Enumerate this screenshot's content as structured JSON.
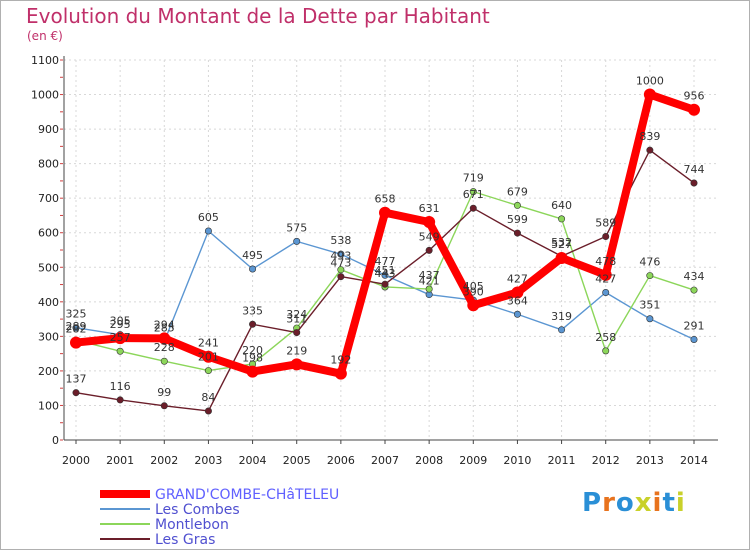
{
  "title": "Evolution du Montant de la Dette par Habitant",
  "subtitle": "(en €)",
  "logo": {
    "text": "Proxiti",
    "colors": [
      "#2a8fd6",
      "#e8731e",
      "#2a8fd6",
      "#c9d12a",
      "#e8731e",
      "#2a8fd6",
      "#c9d12a"
    ]
  },
  "chart_data": {
    "type": "line",
    "x": [
      "2000",
      "2001",
      "2002",
      "2003",
      "2004",
      "2005",
      "2006",
      "2007",
      "2008",
      "2009",
      "2010",
      "2011",
      "2012",
      "2013",
      "2014"
    ],
    "ylim": [
      0,
      1100
    ],
    "yticks": [
      0,
      100,
      200,
      300,
      400,
      500,
      600,
      700,
      800,
      900,
      1000,
      1100
    ],
    "grid": true,
    "legend": "bottom-left",
    "series": [
      {
        "name": "GRAND'COMBE-CHâTELEU",
        "color": "#ff0000",
        "values": [
          282,
          295,
          294,
          241,
          198,
          219,
          192,
          658,
          631,
          390,
          427,
          527,
          478,
          1000,
          956
        ],
        "labels": [
          "282",
          "295",
          "294",
          "241",
          "198",
          "219",
          "192",
          "658",
          "631",
          "390",
          "427",
          "527",
          "478",
          "1000",
          "956"
        ]
      },
      {
        "name": "Les Combes",
        "color": "#5b96d2",
        "values": [
          325,
          305,
          285,
          605,
          495,
          575,
          538,
          477,
          421,
          405,
          364,
          319,
          427,
          351,
          291
        ],
        "labels": [
          "325",
          "305",
          "285",
          "605",
          "495",
          "575",
          "538",
          "477",
          "421",
          "405",
          "364",
          "319",
          "427",
          "351",
          "291"
        ]
      },
      {
        "name": "Montlebon",
        "color": "#8cd65a",
        "values": [
          289,
          257,
          228,
          201,
          220,
          324,
          493,
          443,
          437,
          719,
          679,
          640,
          258,
          476,
          434
        ],
        "labels": [
          "289",
          "257",
          "228",
          "201",
          "220",
          "324",
          "493",
          "443",
          "437",
          "719",
          "679",
          "640",
          "258",
          "476",
          "434"
        ]
      },
      {
        "name": "Les Gras",
        "color": "#6b1e2a",
        "values": [
          137,
          116,
          99,
          84,
          335,
          311,
          473,
          451,
          549,
          671,
          599,
          532,
          589,
          839,
          744
        ],
        "labels": [
          "137",
          "116",
          "99",
          "84",
          "335",
          "311",
          "473",
          "451",
          "549",
          "671",
          "599",
          "532",
          "589",
          "839",
          "744"
        ]
      }
    ]
  }
}
